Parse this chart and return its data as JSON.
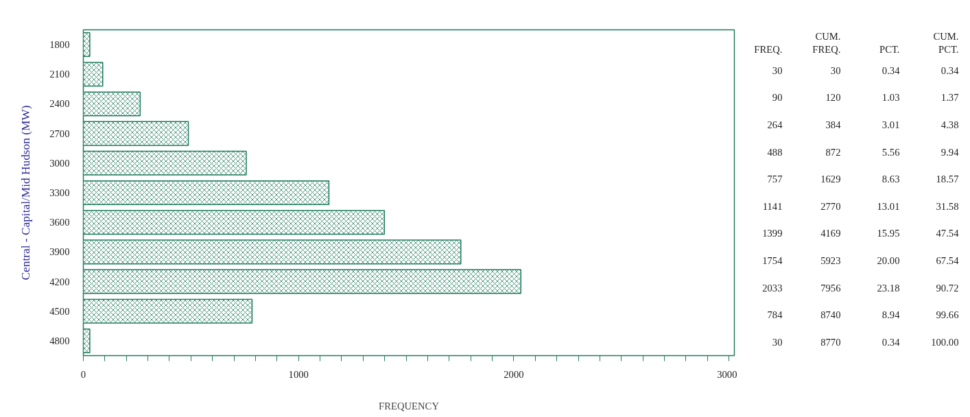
{
  "chart_data": {
    "type": "bar",
    "orientation": "horizontal",
    "xlabel": "FREQUENCY",
    "ylabel": "Central - Capital/Mid Hudson (MW)",
    "categories": [
      "1800",
      "2100",
      "2400",
      "2700",
      "3000",
      "3300",
      "3600",
      "3900",
      "4200",
      "4500",
      "4800"
    ],
    "values": [
      30,
      90,
      264,
      488,
      757,
      1141,
      1399,
      1754,
      2033,
      784,
      30
    ],
    "color": "#1e7b5c",
    "xlim": [
      0,
      3025
    ],
    "xticks": [
      0,
      {
        "value": 100,
        "label": null
      },
      {
        "value": 200,
        "label": null
      },
      {
        "value": 300,
        "label": null
      },
      {
        "value": 400,
        "label": null
      },
      {
        "value": 500,
        "label": null
      },
      {
        "value": 600,
        "label": null
      },
      {
        "value": 700,
        "label": null
      },
      {
        "value": 800,
        "label": null
      },
      {
        "value": 900,
        "label": null
      },
      1000,
      {
        "value": 1100,
        "label": null
      },
      {
        "value": 1200,
        "label": null
      },
      {
        "value": 1300,
        "label": null
      },
      {
        "value": 1400,
        "label": null
      },
      {
        "value": 1500,
        "label": null
      },
      {
        "value": 1600,
        "label": null
      },
      {
        "value": 1700,
        "label": null
      },
      {
        "value": 1800,
        "label": null
      },
      {
        "value": 1900,
        "label": null
      },
      2000,
      {
        "value": 2100,
        "label": null
      },
      {
        "value": 2200,
        "label": null
      },
      {
        "value": 2300,
        "label": null
      },
      {
        "value": 2400,
        "label": null
      },
      {
        "value": 2500,
        "label": null
      },
      {
        "value": 2600,
        "label": null
      },
      {
        "value": 2700,
        "label": null
      },
      {
        "value": 2800,
        "label": null
      },
      {
        "value": 2900,
        "label": null
      },
      3000
    ],
    "data_labels": true,
    "annotations": [
      "FREQ.",
      "CUM.\nFREQ.",
      "PCT.",
      "CUM.\nPCT.",
      "30",
      "0.34",
      "0.34",
      "120",
      "1.03",
      "1.37",
      "384",
      "3.01",
      "4.38",
      "872",
      "5.56",
      "9.94",
      "1629",
      "8.63",
      "18.57",
      "2770",
      "13.01",
      "31.58",
      "4169",
      "15.95",
      "47.54",
      "5923",
      "20.00",
      "67.54",
      "7956",
      "23.18",
      "90.72",
      "8740",
      "8.94",
      "99.66",
      "8770",
      "0.34",
      "100.00"
    ]
  }
}
